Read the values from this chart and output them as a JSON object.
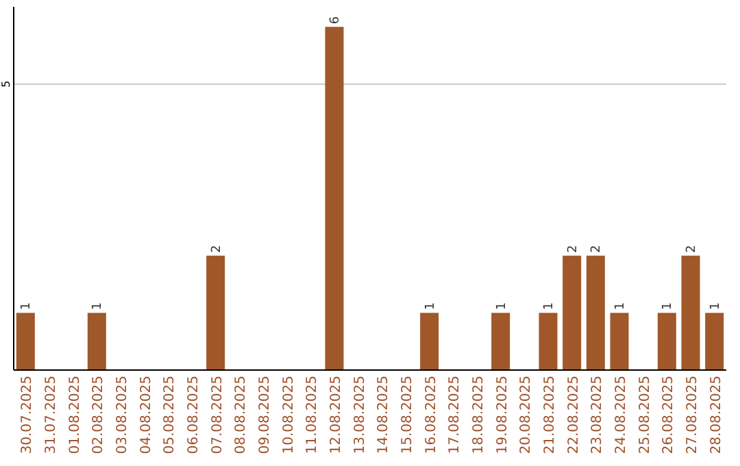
{
  "chart_data": {
    "type": "bar",
    "categories": [
      "30.07.2025",
      "31.07.2025",
      "01.08.2025",
      "02.08.2025",
      "03.08.2025",
      "04.08.2025",
      "05.08.2025",
      "06.08.2025",
      "07.08.2025",
      "08.08.2025",
      "09.08.2025",
      "10.08.2025",
      "11.08.2025",
      "12.08.2025",
      "13.08.2025",
      "14.08.2025",
      "15.08.2025",
      "16.08.2025",
      "17.08.2025",
      "18.08.2025",
      "19.08.2025",
      "20.08.2025",
      "21.08.2025",
      "22.08.2025",
      "23.08.2025",
      "24.08.2025",
      "25.08.2025",
      "26.08.2025",
      "27.08.2025",
      "28.08.2025"
    ],
    "values": [
      1,
      0,
      0,
      1,
      0,
      0,
      0,
      0,
      2,
      0,
      0,
      0,
      0,
      6,
      0,
      0,
      0,
      1,
      0,
      0,
      1,
      0,
      1,
      2,
      2,
      1,
      0,
      1,
      2,
      1
    ],
    "value_labels": [
      "1",
      null,
      null,
      "1",
      null,
      null,
      null,
      null,
      "2",
      null,
      null,
      null,
      null,
      "6",
      null,
      null,
      null,
      "1",
      null,
      null,
      "1",
      null,
      "1",
      "2",
      "2",
      "1",
      null,
      "1",
      "2",
      "1"
    ],
    "color": "#a0582a",
    "ylim": [
      0,
      6.35
    ],
    "yticks": [
      5
    ],
    "grid": "y"
  }
}
